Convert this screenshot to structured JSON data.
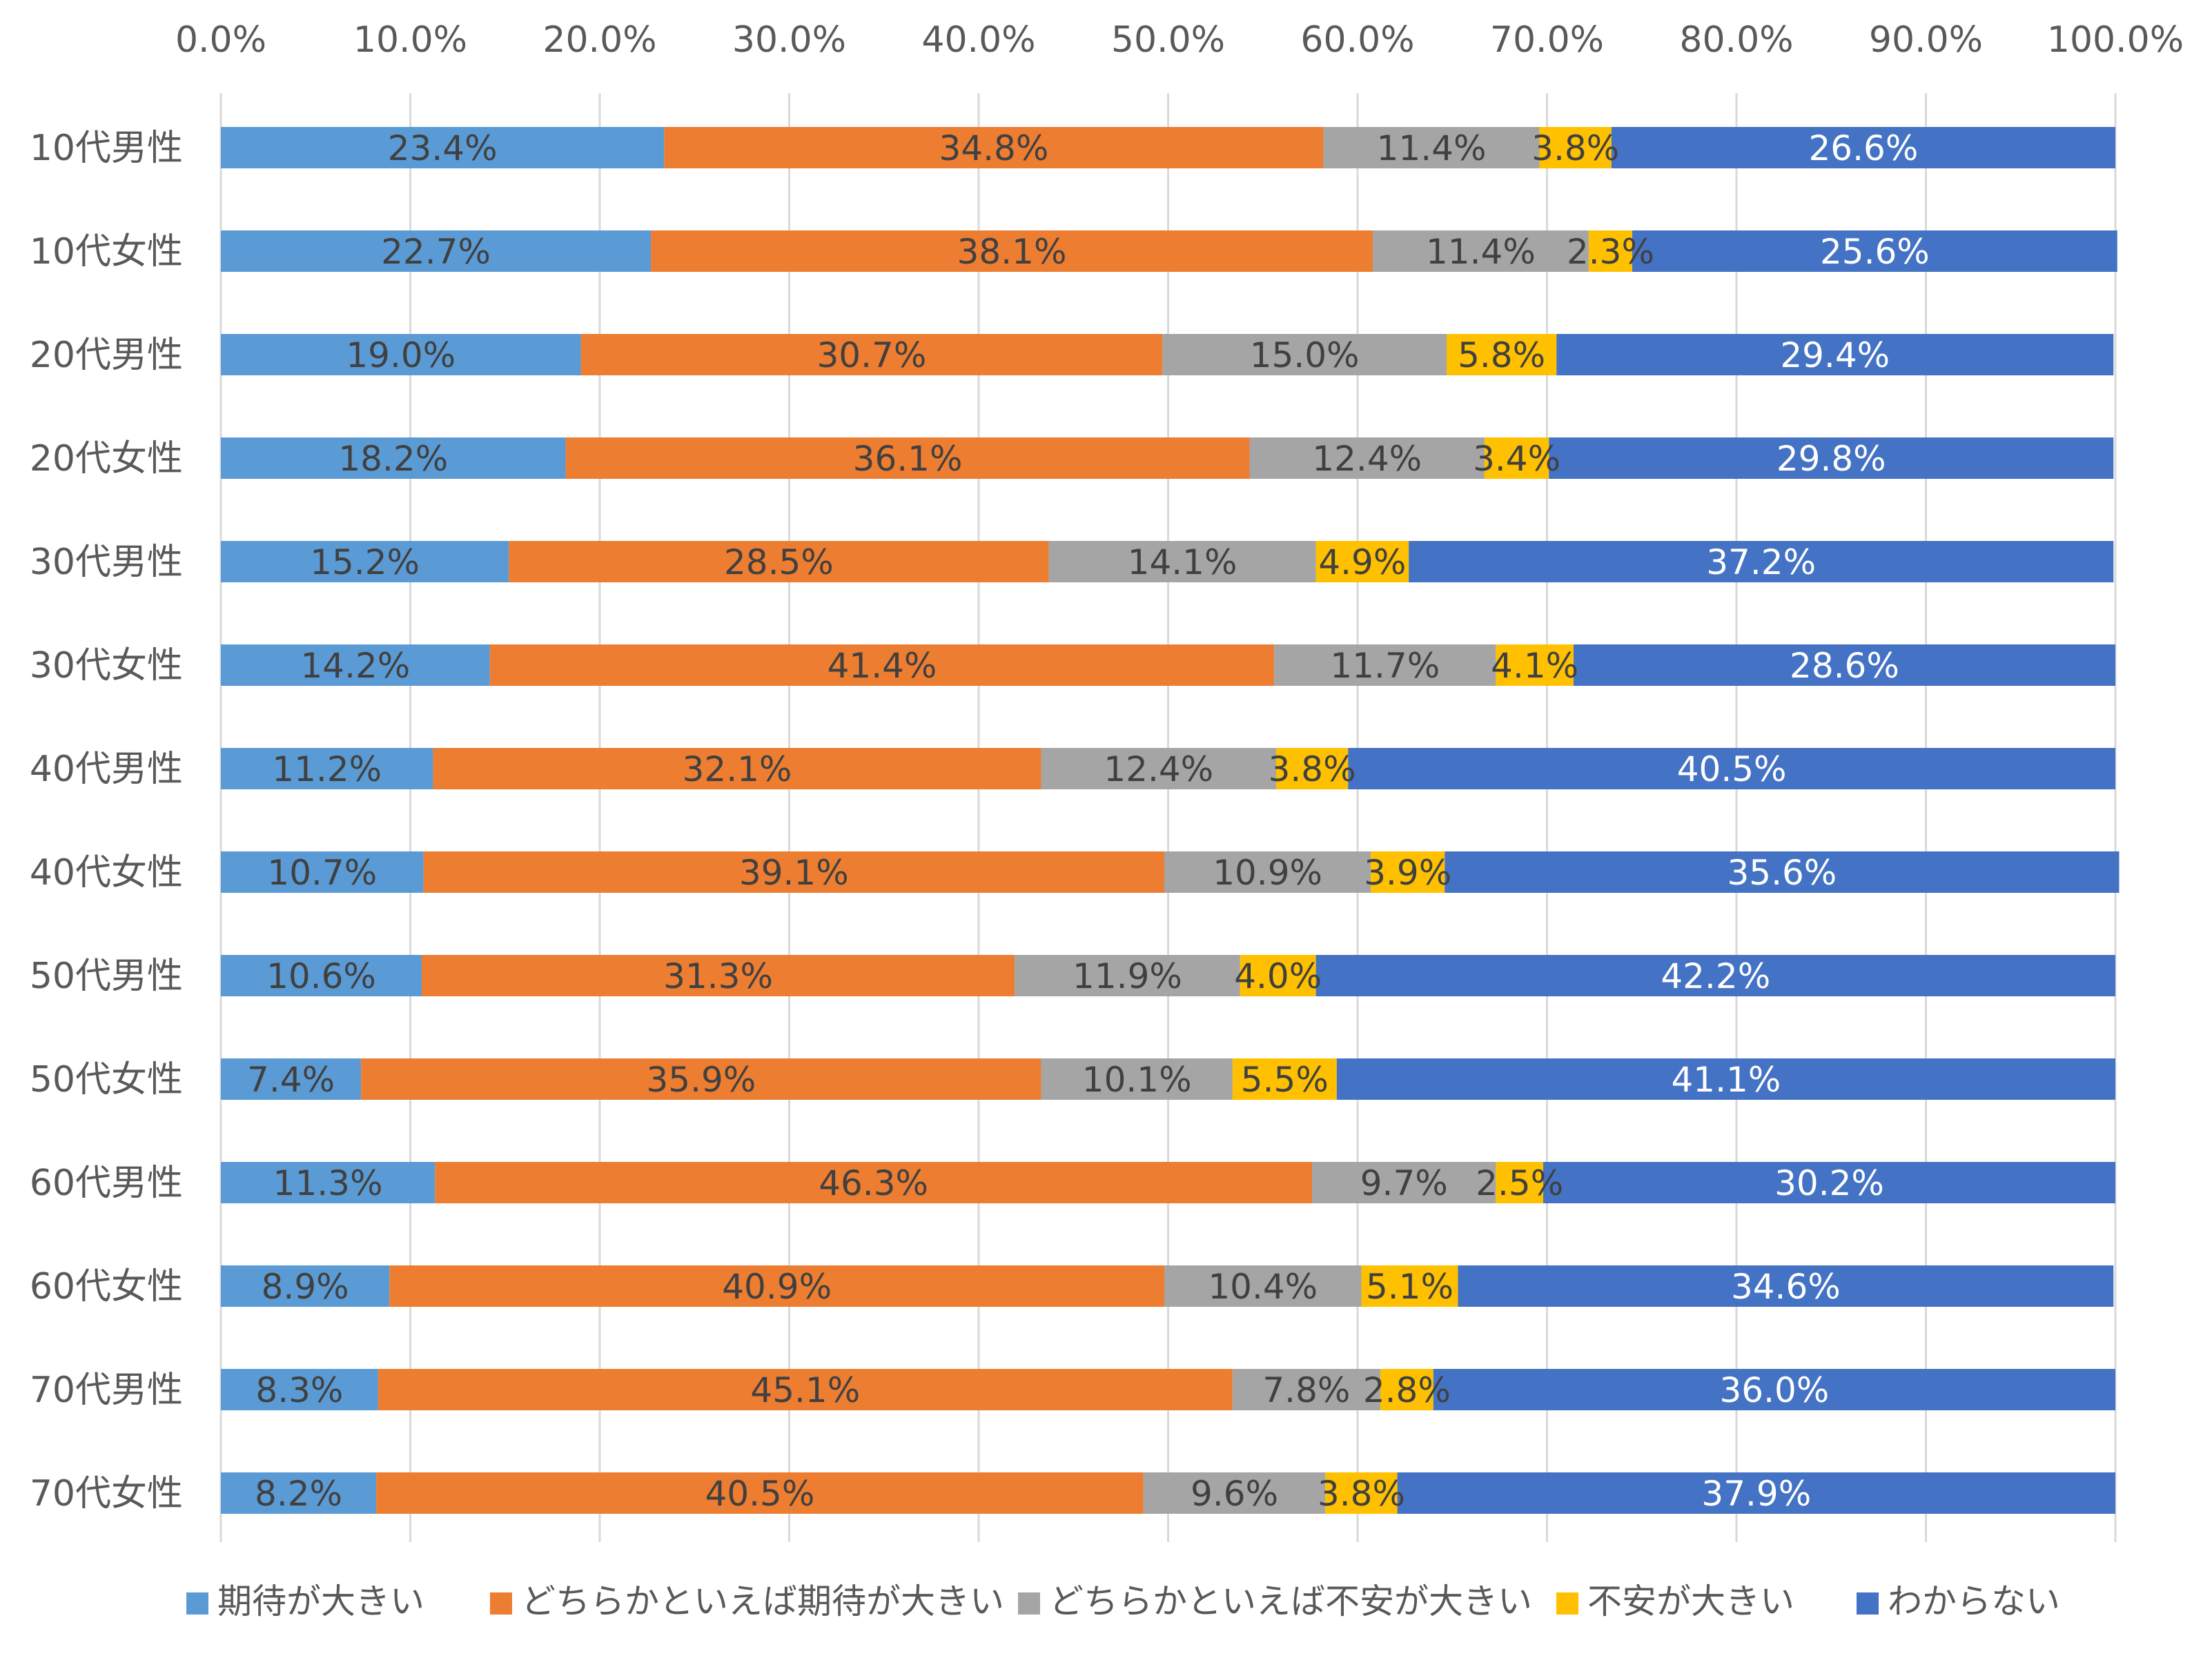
{
  "chart_data": {
    "type": "bar",
    "orientation": "horizontal",
    "stacked": true,
    "percent_stacked": true,
    "title": "",
    "xlabel": "",
    "ylabel": "",
    "xlim": [
      0,
      100
    ],
    "x_tick_labels": [
      "0.0%",
      "10.0%",
      "20.0%",
      "30.0%",
      "40.0%",
      "50.0%",
      "60.0%",
      "70.0%",
      "80.0%",
      "90.0%",
      "100.0%"
    ],
    "x_axis_position": "top",
    "grid": true,
    "legend_position": "bottom",
    "categories": [
      "10代男性",
      "10代女性",
      "20代男性",
      "20代女性",
      "30代男性",
      "30代女性",
      "40代男性",
      "40代女性",
      "50代男性",
      "50代女性",
      "60代男性",
      "60代女性",
      "70代男性",
      "70代女性"
    ],
    "series": [
      {
        "name": "期待が大きい",
        "color": "#5B9BD5",
        "label_color": "#404040",
        "values": [
          23.4,
          22.7,
          19.0,
          18.2,
          15.2,
          14.2,
          11.2,
          10.7,
          10.6,
          7.4,
          11.3,
          8.9,
          8.3,
          8.2
        ],
        "labels": [
          "23.4%",
          "22.7%",
          "19.0%",
          "18.2%",
          "15.2%",
          "14.2%",
          "11.2%",
          "10.7%",
          "10.6%",
          "7.4%",
          "11.3%",
          "8.9%",
          "8.3%",
          "8.2%"
        ]
      },
      {
        "name": "どちらかといえば期待が大きい",
        "color": "#ED7D31",
        "label_color": "#404040",
        "values": [
          34.8,
          38.1,
          30.7,
          36.1,
          28.5,
          41.4,
          32.1,
          39.1,
          31.3,
          35.9,
          46.3,
          40.9,
          45.1,
          40.5
        ],
        "labels": [
          "34.8%",
          "38.1%",
          "30.7%",
          "36.1%",
          "28.5%",
          "41.4%",
          "32.1%",
          "39.1%",
          "31.3%",
          "35.9%",
          "46.3%",
          "40.9%",
          "45.1%",
          "40.5%"
        ]
      },
      {
        "name": "どちらかといえば不安が大きい",
        "color": "#A5A5A5",
        "label_color": "#404040",
        "values": [
          11.4,
          11.4,
          15.0,
          12.4,
          14.1,
          11.7,
          12.4,
          10.9,
          11.9,
          10.1,
          9.7,
          10.4,
          7.8,
          9.6
        ],
        "labels": [
          "11.4%",
          "11.4%",
          "15.0%",
          "12.4%",
          "14.1%",
          "11.7%",
          "12.4%",
          "10.9%",
          "11.9%",
          "10.1%",
          "9.7%",
          "10.4%",
          "7.8%",
          "9.6%"
        ]
      },
      {
        "name": "不安が大きい",
        "color": "#FFC000",
        "label_color": "#404040",
        "values": [
          3.8,
          2.3,
          5.8,
          3.4,
          4.9,
          4.1,
          3.8,
          3.9,
          4.0,
          5.5,
          2.5,
          5.1,
          2.8,
          3.8
        ],
        "labels": [
          "3.8%",
          "2.3%",
          "5.8%",
          "3.4%",
          "4.9%",
          "4.1%",
          "3.8%",
          "3.9%",
          "4.0%",
          "5.5%",
          "2.5%",
          "5.1%",
          "2.8%",
          "3.8%"
        ]
      },
      {
        "name": "わからない",
        "color": "#4472C4",
        "label_color": "#FFFFFF",
        "values": [
          26.6,
          25.6,
          29.4,
          29.8,
          37.2,
          28.6,
          40.5,
          35.6,
          42.2,
          41.1,
          30.2,
          34.6,
          36.0,
          37.9
        ],
        "labels": [
          "26.6%",
          "25.6%",
          "29.4%",
          "29.8%",
          "37.2%",
          "28.6%",
          "40.5%",
          "35.6%",
          "42.2%",
          "41.1%",
          "30.2%",
          "34.6%",
          "36.0%",
          "37.9%"
        ]
      }
    ]
  }
}
